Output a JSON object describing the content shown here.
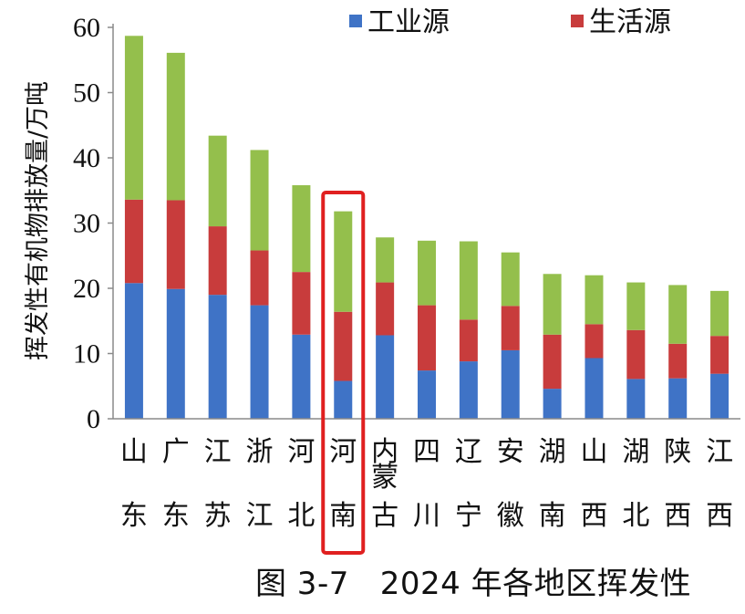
{
  "chart_data": {
    "type": "bar",
    "stacked": true,
    "title": "",
    "xlabel": "",
    "ylabel": "挥发性有机物排放量/万吨",
    "ylim": [
      0,
      60
    ],
    "yticks": [
      "0",
      "10",
      "20",
      "30",
      "40",
      "50",
      "60"
    ],
    "categories": [
      "山东",
      "广东",
      "江苏",
      "浙江",
      "河北",
      "河南",
      "内蒙古",
      "四川",
      "辽宁",
      "安徽",
      "湖南",
      "山西",
      "湖北",
      "陕西",
      "江西"
    ],
    "category_labels": [
      [
        "山",
        "东"
      ],
      [
        "广",
        "东"
      ],
      [
        "江",
        "苏"
      ],
      [
        "浙",
        "江"
      ],
      [
        "河",
        "北"
      ],
      [
        "河",
        "南"
      ],
      [
        "内",
        "蒙",
        "古"
      ],
      [
        "四",
        "川"
      ],
      [
        "辽",
        "宁"
      ],
      [
        "安",
        "徽"
      ],
      [
        "湖",
        "南"
      ],
      [
        "山",
        "西"
      ],
      [
        "湖",
        "北"
      ],
      [
        "陕",
        "西"
      ],
      [
        "江",
        "西"
      ]
    ],
    "series": [
      {
        "name": "工业源",
        "color": "#3f73c6",
        "values": [
          20.8,
          19.9,
          19.0,
          17.4,
          12.9,
          5.8,
          12.8,
          7.4,
          8.8,
          10.5,
          4.6,
          9.3,
          6.1,
          6.2,
          6.9
        ]
      },
      {
        "name": "生活源",
        "color": "#c83c3c",
        "values": [
          12.8,
          13.6,
          10.5,
          8.4,
          9.6,
          10.6,
          8.1,
          10.0,
          6.4,
          6.8,
          8.3,
          5.2,
          7.5,
          5.3,
          5.8
        ]
      },
      {
        "name": "",
        "color": "#94bf4c",
        "values": [
          25.1,
          22.6,
          13.9,
          15.4,
          13.3,
          15.4,
          6.9,
          9.9,
          12.0,
          8.2,
          9.3,
          7.5,
          7.3,
          9.0,
          6.9
        ]
      }
    ],
    "legend": [
      {
        "name": "工业源",
        "color": "#3f73c6"
      },
      {
        "name": "生活源",
        "color": "#c83c3c"
      }
    ],
    "legend_position": "top-right",
    "highlight": {
      "category": "河南",
      "color": "#e02020"
    }
  },
  "caption": "图 3-7   2024 年各地区挥发性"
}
